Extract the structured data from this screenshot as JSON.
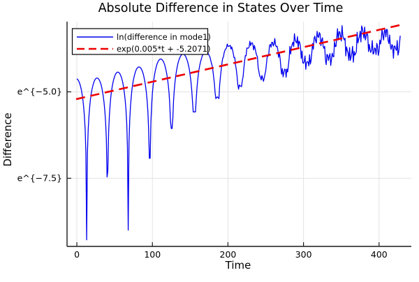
{
  "chart_data": {
    "type": "line",
    "title": "Absolute Difference in States Over Time",
    "xlabel": "Time",
    "ylabel": "Difference",
    "x_axis": {
      "lim": [
        -13,
        442.7
      ],
      "ticks": [
        0,
        100,
        200,
        300,
        400
      ]
    },
    "y_axis": {
      "scale": "ln",
      "lim_ln": [
        -9.47,
        -2.97
      ],
      "ticks": [
        {
          "label": "e^{−5.0}",
          "ln": -5.0
        },
        {
          "label": "e^{−7.5}",
          "ln": -7.5
        }
      ]
    },
    "grid": true,
    "legend_position": "top-left",
    "series": [
      {
        "name": "ln(difference in mode1)",
        "color": "#0000EE",
        "style": "solid",
        "width": 1.3,
        "model": {
          "description": "ln|difference| : arcs between cancellation dips riding exponential growth envelope",
          "t_start": 0,
          "t_end": 428.5,
          "sample_dt": 1.0,
          "segment_boundaries_t": [
            -14.5,
            13,
            40.5,
            68,
            96.5,
            125.5,
            155.5,
            186,
            216,
            245.5,
            275,
            304.5,
            334.5,
            363,
            394,
            422,
            444
          ],
          "segment_peak_ln": [
            -4.62,
            -4.6,
            -4.43,
            -4.28,
            -4.05,
            -3.91,
            -3.84,
            -3.66,
            -3.61,
            -3.58,
            -3.5,
            -3.38,
            -3.31,
            -3.27,
            -3.28,
            -3.25
          ],
          "dips_t": [
            13,
            40.5,
            68,
            96.5,
            125.5,
            155.5,
            186,
            216,
            245.5,
            275,
            304.5,
            334.5,
            363,
            394,
            422
          ],
          "dips_ln": [
            -9.28,
            -8.48,
            -9.0,
            -6.92,
            -6.06,
            -5.58,
            -5.17,
            -4.83,
            -4.6,
            -4.43,
            -4.15,
            -4.02,
            -3.92,
            -3.78,
            -3.75
          ],
          "ripple": {
            "onset_t": 160,
            "full_t": 340,
            "amplitude": 0.32,
            "components": [
              [
                1.9,
                0.5,
                0.3
              ],
              [
                3.1,
                0.3,
                1.1
              ],
              [
                5.3,
                0.2,
                2.2
              ]
            ]
          }
        }
      },
      {
        "name": "exp(0.005*t + -5.2071)",
        "color": "#EE0000",
        "style": "dashed",
        "width": 2.6,
        "dash": "13 8",
        "fit": {
          "slope": 0.005,
          "intercept": -5.2071,
          "t_start": -1,
          "t_end": 428
        }
      }
    ],
    "colors": {
      "background": "#ffffff",
      "grid": "#e3e3e3",
      "spine": "#1a1a1a",
      "text": "#000000",
      "legend_border": "#000000",
      "legend_background": "#ffffff"
    }
  }
}
